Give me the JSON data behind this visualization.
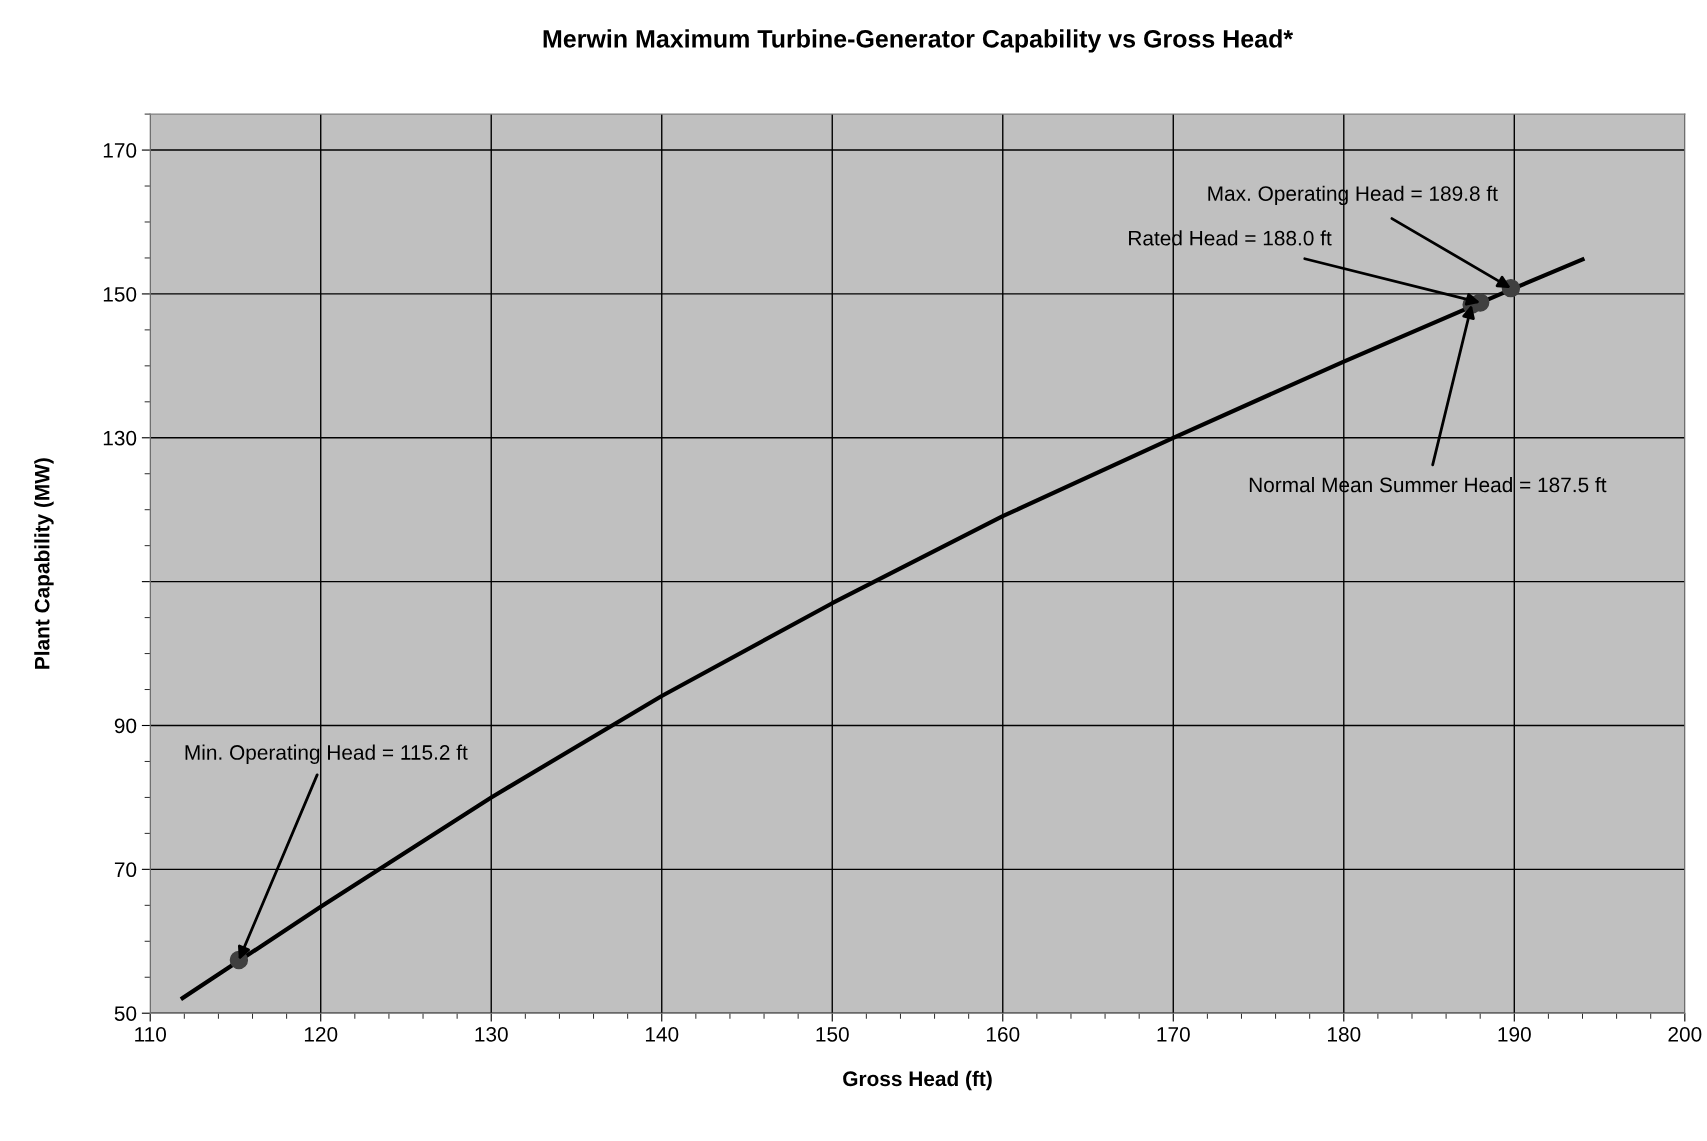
{
  "chart_data": {
    "type": "line",
    "title": "Merwin Maximum Turbine-Generator Capability vs Gross Head*",
    "xlabel": "Gross Head (ft)",
    "ylabel": "Plant Capability (MW)",
    "xlim": [
      110,
      200
    ],
    "xticks": [
      110,
      120,
      130,
      140,
      150,
      160,
      170,
      180,
      190,
      200
    ],
    "ylim": [
      50,
      175
    ],
    "yticks": [
      50,
      70,
      90,
      {
        "value": 110,
        "label": null
      },
      130,
      150,
      170
    ],
    "grid": true,
    "legend": false,
    "series": [
      {
        "color": "#000000",
        "marker": "none",
        "line_style": "solid",
        "x": [
          111.9,
          120,
          130,
          140,
          150,
          160,
          170,
          180,
          190,
          194.0
        ],
        "values": [
          52.1,
          64.8,
          80.0,
          94.1,
          107.0,
          119.1,
          130.0,
          140.6,
          150.8,
          154.8
        ]
      },
      {
        "type": "scatter",
        "color": "#404040",
        "marker": "circle",
        "x": [
          115.2,
          187.5,
          188.0,
          189.8
        ],
        "values": [
          57.4,
          148.5,
          148.8,
          150.8
        ]
      }
    ],
    "annotations": [
      {
        "text": "Max. Operating Head = 189.8 ft",
        "x": 189.8,
        "y": 150.8
      },
      {
        "text": "Rated Head = 188.0 ft",
        "x": 188.0,
        "y": 148.8
      },
      {
        "text": "Normal Mean Summer Head = 187.5 ft",
        "x": 187.5,
        "y": 148.5
      },
      {
        "text": "Min. Operating Head = 115.2 ft",
        "x": 115.2,
        "y": 57.4
      }
    ]
  }
}
